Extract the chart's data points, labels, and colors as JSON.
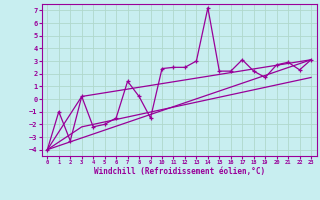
{
  "xlabel": "Windchill (Refroidissement éolien,°C)",
  "bg_color": "#c8eef0",
  "line_color": "#990099",
  "grid_color": "#b0d8cc",
  "xlim": [
    -0.5,
    23.5
  ],
  "ylim": [
    -4.5,
    7.5
  ],
  "xticks": [
    0,
    1,
    2,
    3,
    4,
    5,
    6,
    7,
    8,
    9,
    10,
    11,
    12,
    13,
    14,
    15,
    16,
    17,
    18,
    19,
    20,
    21,
    22,
    23
  ],
  "yticks": [
    -4,
    -3,
    -2,
    -1,
    0,
    1,
    2,
    3,
    4,
    5,
    6,
    7
  ],
  "series1_x": [
    0,
    1,
    2,
    3,
    4,
    5,
    6,
    7,
    8,
    9,
    10,
    11,
    12,
    13,
    14,
    15,
    16,
    17,
    18,
    19,
    20,
    21,
    22,
    23
  ],
  "series1_y": [
    -4.0,
    -1.0,
    -3.3,
    0.2,
    -2.2,
    -2.0,
    -1.5,
    1.4,
    0.2,
    -1.5,
    2.4,
    2.5,
    2.5,
    3.0,
    7.2,
    2.2,
    2.2,
    3.1,
    2.2,
    1.7,
    2.7,
    2.9,
    2.3,
    3.1
  ],
  "series2_x": [
    0,
    23
  ],
  "series2_y": [
    -4.0,
    3.1
  ],
  "series3_x": [
    0,
    3,
    23
  ],
  "series3_y": [
    -4.0,
    0.2,
    3.1
  ],
  "series4_x": [
    0,
    3,
    23
  ],
  "series4_y": [
    -4.0,
    -2.2,
    1.7
  ]
}
